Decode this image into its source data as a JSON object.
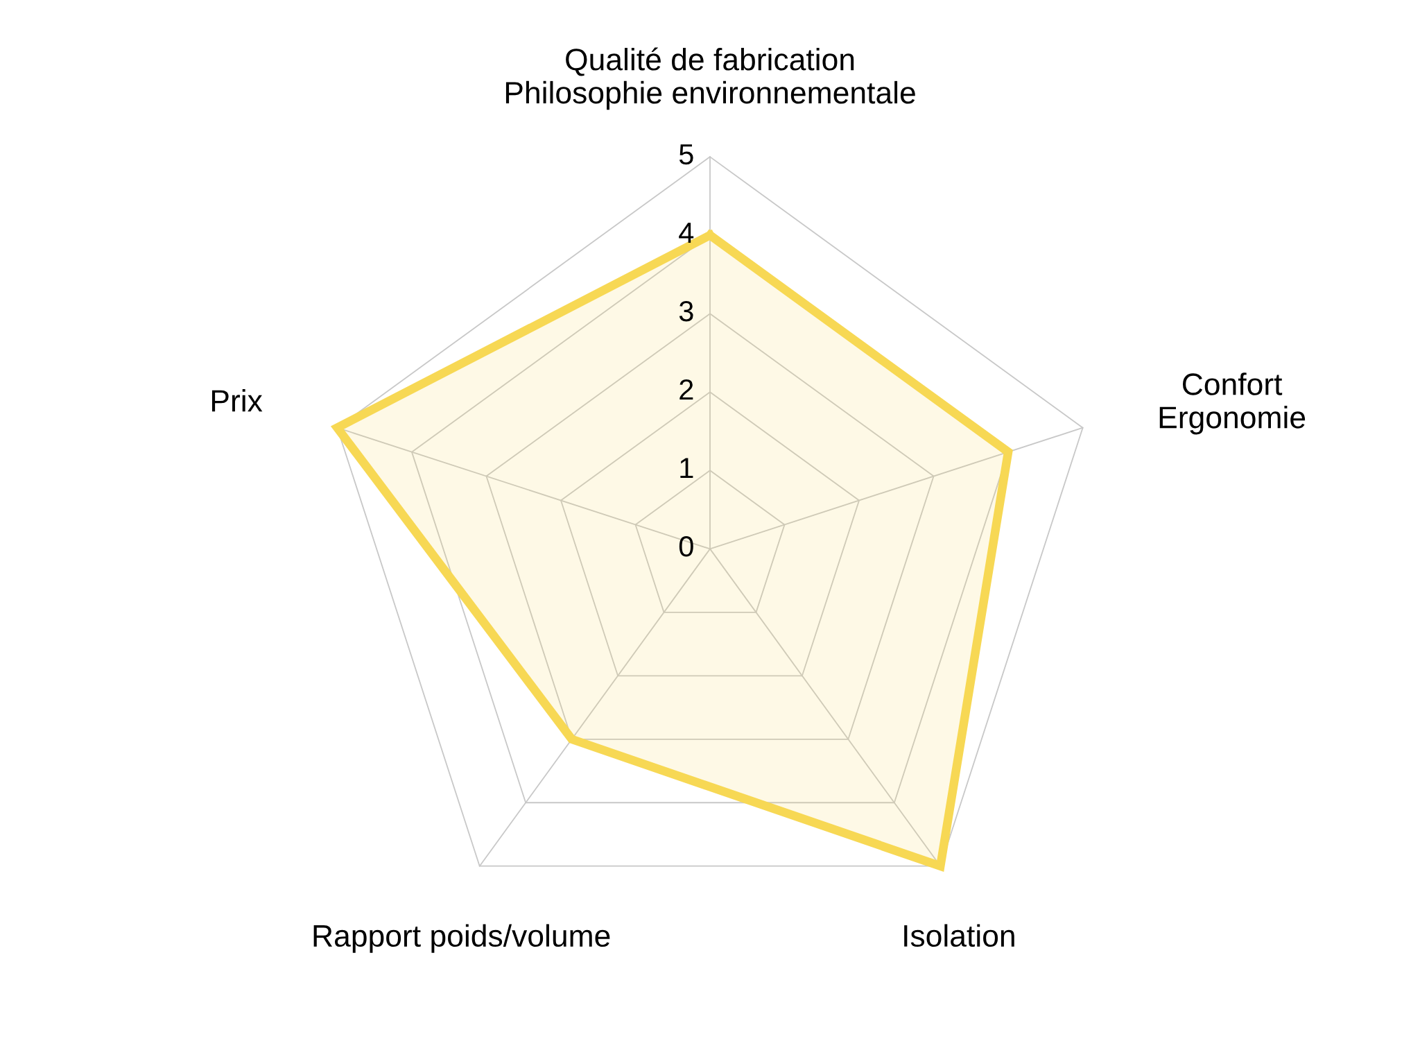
{
  "chart_data": {
    "type": "radar",
    "categories": [
      "Qualité de fabrication\nPhilosophie environnementale",
      "Confort\nErgonomie",
      "Isolation",
      "Rapport poids/volume",
      "Prix"
    ],
    "series": [
      {
        "color": "#f7d854",
        "values": [
          4,
          4,
          5,
          3,
          5
        ]
      }
    ],
    "ylim": [
      0,
      5
    ],
    "yticks": [
      0,
      1,
      2,
      3,
      4,
      5
    ],
    "grid": true,
    "legend": false
  }
}
